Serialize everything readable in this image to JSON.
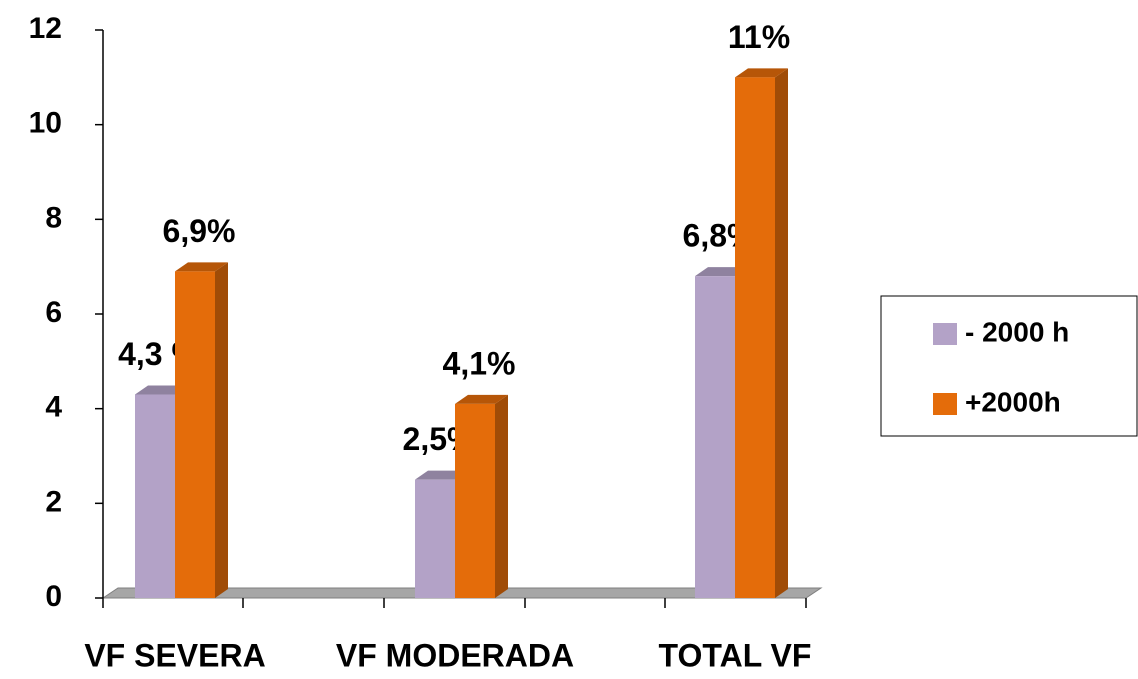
{
  "chart_data": {
    "type": "bar3d",
    "categories": [
      "VF SEVERA",
      "VF MODERADA",
      "TOTAL VF"
    ],
    "series": [
      {
        "name": "- 2000 h",
        "color": "#b3a2c7",
        "values": [
          4.3,
          2.5,
          6.8
        ],
        "value_labels": [
          "4,3 %",
          "2,5%",
          "6,8%"
        ]
      },
      {
        "name": "+2000h",
        "color": "#e46c0a",
        "values": [
          6.9,
          4.1,
          11
        ],
        "value_labels": [
          "6,9%",
          "4,1%",
          "11%"
        ]
      }
    ],
    "ylim": [
      0,
      12
    ],
    "yticks": [
      0,
      2,
      4,
      6,
      8,
      10,
      12
    ],
    "grid": false,
    "legend": "right"
  }
}
